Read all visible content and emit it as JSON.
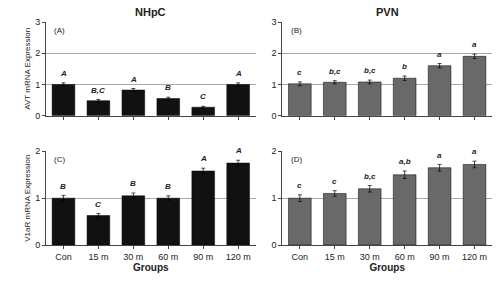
{
  "chart_data": [
    {
      "type": "bar",
      "title": "NHpC",
      "categories": [
        "Con",
        "15 m",
        "30 m",
        "60 m",
        "90 m",
        "120 m"
      ],
      "values": [
        1.0,
        0.48,
        0.82,
        0.55,
        0.27,
        1.0
      ],
      "errors": [
        0.05,
        0.04,
        0.05,
        0.04,
        0.03,
        0.05
      ],
      "color": "#111111",
      "ylabel": "AVT mRNA Expression",
      "ylim": [
        0,
        3
      ],
      "yticks": [
        0,
        1,
        2,
        3
      ],
      "grid": true,
      "tick_labels": "y",
      "annotations": [
        {
          "text": "(A)"
        },
        {
          "x": "Con",
          "text": "A"
        },
        {
          "x": "15 m",
          "text": "B,C"
        },
        {
          "x": "30 m",
          "text": "A"
        },
        {
          "x": "60 m",
          "text": "B"
        },
        {
          "x": "90 m",
          "text": "C"
        },
        {
          "x": "120 m",
          "text": "A"
        }
      ]
    },
    {
      "type": "bar",
      "title": "PVN",
      "categories": [
        "Con",
        "15 m",
        "30 m",
        "60 m",
        "90 m",
        "120 m"
      ],
      "values": [
        1.02,
        1.07,
        1.08,
        1.2,
        1.6,
        1.9
      ],
      "errors": [
        0.06,
        0.05,
        0.06,
        0.07,
        0.07,
        0.07
      ],
      "color": "#696969",
      "ylim": [
        0,
        3
      ],
      "yticks": [
        0,
        1,
        2,
        3
      ],
      "grid": true,
      "tick_labels": "y",
      "annotations": [
        {
          "text": "(B)"
        },
        {
          "x": "Con",
          "text": "c"
        },
        {
          "x": "15 m",
          "text": "b,c"
        },
        {
          "x": "30 m",
          "text": "b,c"
        },
        {
          "x": "60 m",
          "text": "b"
        },
        {
          "x": "90 m",
          "text": "a"
        },
        {
          "x": "120 m",
          "text": "a"
        }
      ]
    },
    {
      "type": "bar",
      "categories": [
        "Con",
        "15 m",
        "30 m",
        "60 m",
        "90 m",
        "120 m"
      ],
      "values": [
        1.0,
        0.63,
        1.05,
        1.0,
        1.58,
        1.75
      ],
      "errors": [
        0.06,
        0.04,
        0.06,
        0.05,
        0.06,
        0.06
      ],
      "color": "#111111",
      "xlabel": "Groups",
      "ylabel": "V1aR mRNA Expression",
      "ylim": [
        0,
        2
      ],
      "yticks": [
        0,
        1,
        2
      ],
      "grid": true,
      "annotations": [
        {
          "text": "(C)"
        },
        {
          "x": "Con",
          "text": "B"
        },
        {
          "x": "15 m",
          "text": "C"
        },
        {
          "x": "30 m",
          "text": "B"
        },
        {
          "x": "60 m",
          "text": "B"
        },
        {
          "x": "90 m",
          "text": "A"
        },
        {
          "x": "120 m",
          "text": "A"
        }
      ]
    },
    {
      "type": "bar",
      "categories": [
        "Con",
        "15 m",
        "30 m",
        "60 m",
        "90 m",
        "120 m"
      ],
      "values": [
        1.0,
        1.1,
        1.2,
        1.5,
        1.65,
        1.72
      ],
      "errors": [
        0.07,
        0.06,
        0.07,
        0.08,
        0.07,
        0.07
      ],
      "color": "#696969",
      "xlabel": "Groups",
      "ylim": [
        0,
        2
      ],
      "yticks": [
        0,
        1,
        2
      ],
      "grid": true,
      "annotations": [
        {
          "text": "(D)"
        },
        {
          "x": "Con",
          "text": "c"
        },
        {
          "x": "15 m",
          "text": "c"
        },
        {
          "x": "30 m",
          "text": "b,c"
        },
        {
          "x": "60 m",
          "text": "a,b"
        },
        {
          "x": "90 m",
          "text": "a"
        },
        {
          "x": "120 m",
          "text": "a"
        }
      ]
    }
  ]
}
